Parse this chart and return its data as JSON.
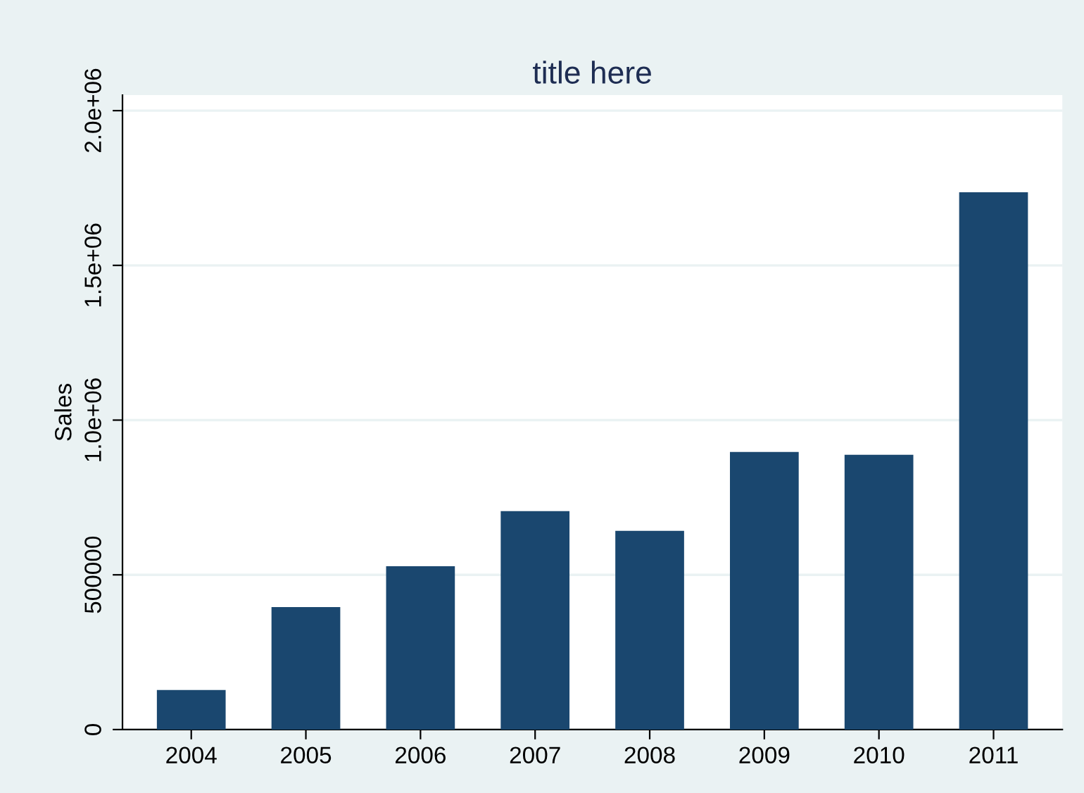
{
  "chart_data": {
    "type": "bar",
    "title": "title here",
    "ylabel": "Sales",
    "categories": [
      "2004",
      "2005",
      "2006",
      "2007",
      "2008",
      "2009",
      "2010",
      "2011"
    ],
    "values": [
      128000,
      396000,
      528000,
      706000,
      642000,
      897000,
      888000,
      1736000
    ],
    "color": "#1a476f",
    "ylim": [
      0,
      2050000
    ],
    "yticks": [
      0,
      500000,
      {
        "value": 1000000,
        "label": "1.0e+06"
      },
      {
        "value": 1500000,
        "label": "1.5e+06"
      },
      {
        "value": 2000000,
        "label": "2.0e+06"
      }
    ],
    "grid": "y",
    "legend": false
  }
}
